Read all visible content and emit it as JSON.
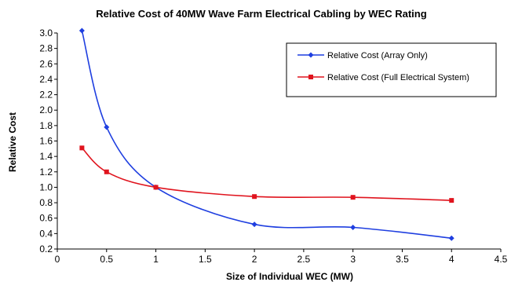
{
  "chart_data": {
    "type": "line",
    "title": "Relative Cost of 40MW Wave Farm Electrical Cabling by WEC Rating",
    "xlabel": "Size of Individual WEC (MW)",
    "ylabel": "Relative Cost",
    "xlim": [
      0,
      4.5
    ],
    "ylim": [
      0.2,
      3.0
    ],
    "xticks": [
      "0",
      "0.5",
      "1",
      "1.5",
      "2",
      "2.5",
      "3",
      "3.5",
      "4",
      "4.5"
    ],
    "yticks": [
      "0.2",
      "0.4",
      "0.6",
      "0.8",
      "1.0",
      "1.2",
      "1.4",
      "1.6",
      "1.8",
      "2.0",
      "2.2",
      "2.4",
      "2.6",
      "2.8",
      "3.0"
    ],
    "grid": false,
    "legend_position": "top-right",
    "series": [
      {
        "name": "Relative Cost (Array Only)",
        "color": "#1f3fe0",
        "marker": "diamond",
        "x": [
          0.25,
          0.5,
          1,
          2,
          3,
          4
        ],
        "y": [
          3.03,
          1.78,
          1.0,
          0.52,
          0.48,
          0.34
        ]
      },
      {
        "name": "Relative Cost (Full Electrical System)",
        "color": "#e0141e",
        "marker": "square",
        "x": [
          0.25,
          0.5,
          1,
          2,
          3,
          4
        ],
        "y": [
          1.51,
          1.2,
          1.0,
          0.88,
          0.87,
          0.83
        ]
      }
    ]
  }
}
